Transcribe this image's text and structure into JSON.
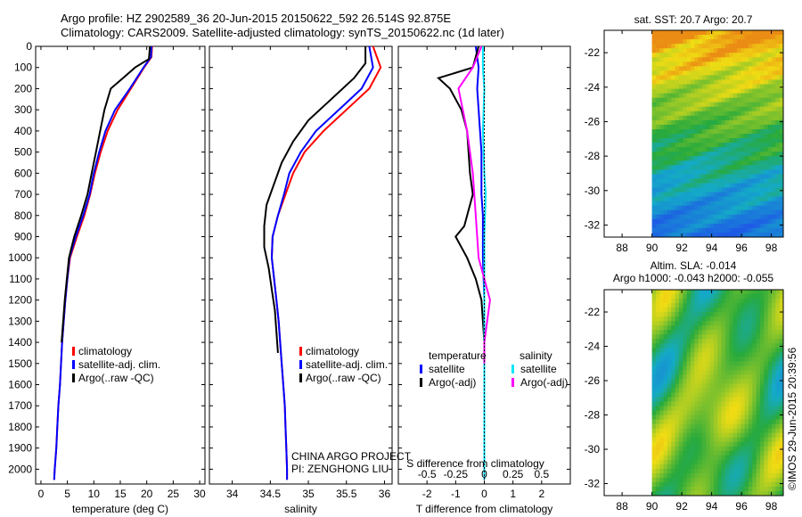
{
  "header": {
    "line1": "Argo profile: HZ 2902589_36 20-Jun-2015 20150622_592 26.514S 92.875E",
    "line2": "Climatology: CARS2009. Satellite-adjusted climatology: synTS_20150622.nc (1d later)"
  },
  "chart_data": [
    {
      "type": "line",
      "name": "temperature-panel",
      "xlabel": "temperature (deg C)",
      "ylabel": "",
      "xlim": [
        -1,
        31
      ],
      "ylim": [
        2070,
        0
      ],
      "xticks": [
        0,
        5,
        10,
        15,
        20,
        25,
        30
      ],
      "yticks": [
        0,
        100,
        200,
        300,
        400,
        500,
        600,
        700,
        800,
        900,
        1000,
        1100,
        1200,
        1300,
        1400,
        1500,
        1600,
        1700,
        1800,
        1900,
        2000
      ],
      "legend": [
        "climatology",
        "satellite-adj. clim.",
        "Argo(..raw -QC)"
      ],
      "legend_colors": [
        "#ff0000",
        "#0000ff",
        "#000000"
      ],
      "series": [
        {
          "name": "climatology",
          "color": "#ff0000",
          "points": [
            [
              21.0,
              0
            ],
            [
              20.9,
              50
            ],
            [
              19.5,
              100
            ],
            [
              17.0,
              200
            ],
            [
              14.5,
              300
            ],
            [
              12.6,
              400
            ],
            [
              11.3,
              500
            ],
            [
              10.2,
              600
            ],
            [
              9.3,
              700
            ],
            [
              8.2,
              800
            ],
            [
              6.8,
              900
            ],
            [
              5.5,
              1000
            ],
            [
              5.0,
              1100
            ],
            [
              4.6,
              1200
            ],
            [
              4.3,
              1300
            ],
            [
              4.0,
              1400
            ],
            [
              3.8,
              1500
            ],
            [
              3.6,
              1600
            ],
            [
              3.3,
              1700
            ],
            [
              3.1,
              1800
            ],
            [
              2.9,
              1900
            ],
            [
              2.6,
              2000
            ],
            [
              2.5,
              2050
            ]
          ]
        },
        {
          "name": "satellite-adj. clim.",
          "color": "#0000ff",
          "points": [
            [
              20.9,
              0
            ],
            [
              20.8,
              50
            ],
            [
              19.4,
              100
            ],
            [
              16.8,
              200
            ],
            [
              14.0,
              300
            ],
            [
              12.2,
              400
            ],
            [
              11.0,
              500
            ],
            [
              10.0,
              600
            ],
            [
              9.2,
              700
            ],
            [
              8.0,
              800
            ],
            [
              6.6,
              900
            ],
            [
              5.4,
              1000
            ],
            [
              5.0,
              1100
            ],
            [
              4.6,
              1200
            ],
            [
              4.3,
              1300
            ],
            [
              4.0,
              1400
            ],
            [
              3.8,
              1500
            ],
            [
              3.6,
              1600
            ],
            [
              3.3,
              1700
            ],
            [
              3.1,
              1800
            ],
            [
              2.9,
              1900
            ],
            [
              2.6,
              2000
            ],
            [
              2.5,
              2050
            ]
          ]
        },
        {
          "name": "Argo(..raw -QC)",
          "color": "#000000",
          "points": [
            [
              20.6,
              0
            ],
            [
              20.4,
              60
            ],
            [
              17.8,
              100
            ],
            [
              15.5,
              150
            ],
            [
              13.2,
              200
            ],
            [
              12.0,
              300
            ],
            [
              11.2,
              400
            ],
            [
              10.4,
              500
            ],
            [
              9.6,
              600
            ],
            [
              8.8,
              700
            ],
            [
              7.6,
              800
            ],
            [
              6.3,
              900
            ],
            [
              5.3,
              1000
            ],
            [
              4.9,
              1100
            ],
            [
              4.5,
              1200
            ],
            [
              4.2,
              1300
            ],
            [
              3.9,
              1400
            ]
          ]
        }
      ]
    },
    {
      "type": "line",
      "name": "salinity-panel",
      "xlabel": "salinity",
      "ylabel": "",
      "xlim": [
        33.7,
        36.1
      ],
      "ylim": [
        2070,
        0
      ],
      "xticks": [
        34,
        34.5,
        35,
        35.5,
        36
      ],
      "legend": [
        "climatology",
        "satellite-adj. clim.",
        "Argo(..raw -QC)"
      ],
      "legend_colors": [
        "#ff0000",
        "#0000ff",
        "#000000"
      ],
      "annotation": [
        "CHINA ARGO PROJECT",
        "PI: ZENGHONG LIU"
      ],
      "series": [
        {
          "name": "climatology",
          "color": "#ff0000",
          "points": [
            [
              35.85,
              0
            ],
            [
              35.95,
              100
            ],
            [
              35.8,
              200
            ],
            [
              35.5,
              300
            ],
            [
              35.2,
              400
            ],
            [
              34.95,
              500
            ],
            [
              34.8,
              600
            ],
            [
              34.7,
              700
            ],
            [
              34.6,
              800
            ],
            [
              34.53,
              900
            ],
            [
              34.52,
              1000
            ],
            [
              34.55,
              1100
            ],
            [
              34.58,
              1200
            ],
            [
              34.61,
              1300
            ],
            [
              34.63,
              1400
            ],
            [
              34.65,
              1500
            ],
            [
              34.67,
              1600
            ],
            [
              34.69,
              1700
            ],
            [
              34.7,
              1800
            ],
            [
              34.71,
              1900
            ],
            [
              34.72,
              2000
            ],
            [
              34.72,
              2050
            ]
          ]
        },
        {
          "name": "satellite-adj. clim.",
          "color": "#0000ff",
          "points": [
            [
              35.8,
              0
            ],
            [
              35.85,
              100
            ],
            [
              35.7,
              200
            ],
            [
              35.4,
              300
            ],
            [
              35.1,
              400
            ],
            [
              34.9,
              500
            ],
            [
              34.75,
              600
            ],
            [
              34.68,
              700
            ],
            [
              34.6,
              800
            ],
            [
              34.53,
              900
            ],
            [
              34.52,
              1000
            ],
            [
              34.55,
              1100
            ],
            [
              34.58,
              1200
            ],
            [
              34.61,
              1300
            ],
            [
              34.63,
              1400
            ],
            [
              34.65,
              1500
            ],
            [
              34.67,
              1600
            ],
            [
              34.69,
              1700
            ],
            [
              34.7,
              1800
            ],
            [
              34.71,
              1900
            ],
            [
              34.72,
              2000
            ],
            [
              34.72,
              2050
            ]
          ]
        },
        {
          "name": "Argo(..raw -QC)",
          "color": "#000000",
          "points": [
            [
              35.75,
              0
            ],
            [
              35.75,
              80
            ],
            [
              35.6,
              150
            ],
            [
              35.3,
              250
            ],
            [
              35.0,
              350
            ],
            [
              34.8,
              450
            ],
            [
              34.65,
              550
            ],
            [
              34.55,
              650
            ],
            [
              34.45,
              750
            ],
            [
              34.42,
              850
            ],
            [
              34.42,
              950
            ],
            [
              34.48,
              1050
            ],
            [
              34.52,
              1150
            ],
            [
              34.56,
              1250
            ],
            [
              34.58,
              1350
            ],
            [
              34.6,
              1450
            ]
          ]
        }
      ]
    },
    {
      "type": "line",
      "name": "difference-panel",
      "xlabel": "T difference from climatology",
      "top_xlabel": "S difference from climatology",
      "xlim": [
        -3,
        3
      ],
      "ylim": [
        2070,
        0
      ],
      "xticks": [
        -2,
        -1,
        0,
        1,
        2
      ],
      "top_xticks": [
        "-0.5",
        "-0.25",
        "0",
        "0.25",
        "0.5"
      ],
      "legend_t": {
        "title": "temperature",
        "items": [
          "satellite",
          "Argo(-adj)"
        ],
        "colors": [
          "#0000ff",
          "#000000"
        ]
      },
      "legend_s": {
        "title": "salinity",
        "items": [
          "satellite",
          "Argo(-adj)"
        ],
        "colors": [
          "#00e5ff",
          "#ff00ff"
        ]
      },
      "series": [
        {
          "name": "T satellite",
          "color": "#0000ff",
          "points": [
            [
              -0.3,
              0
            ],
            [
              -0.2,
              100
            ],
            [
              -0.25,
              200
            ],
            [
              -0.2,
              300
            ],
            [
              -0.15,
              400
            ],
            [
              -0.1,
              500
            ],
            [
              -0.1,
              600
            ],
            [
              -0.1,
              700
            ],
            [
              -0.05,
              800
            ],
            [
              -0.05,
              1000
            ],
            [
              0,
              1200
            ],
            [
              0,
              1400
            ],
            [
              0,
              2050
            ]
          ]
        },
        {
          "name": "T Argo(-adj)",
          "color": "#000000",
          "points": [
            [
              -0.2,
              0
            ],
            [
              -0.4,
              100
            ],
            [
              -1.6,
              150
            ],
            [
              -1.2,
              200
            ],
            [
              -0.8,
              300
            ],
            [
              -0.6,
              400
            ],
            [
              -0.5,
              600
            ],
            [
              -0.4,
              700
            ],
            [
              -0.7,
              850
            ],
            [
              -1.0,
              900
            ],
            [
              -0.6,
              1000
            ],
            [
              -0.3,
              1100
            ],
            [
              -0.1,
              1200
            ],
            [
              -0.05,
              1300
            ],
            [
              0,
              1400
            ]
          ]
        },
        {
          "name": "S satellite",
          "color": "#00e5ff",
          "points": [
            [
              -0.05,
              0
            ],
            [
              -0.05,
              100
            ],
            [
              0,
              200
            ],
            [
              -0.05,
              400
            ],
            [
              0,
              600
            ],
            [
              0.05,
              700
            ],
            [
              0,
              900
            ],
            [
              0,
              1200
            ],
            [
              0,
              2050
            ]
          ]
        },
        {
          "name": "S Argo(-adj)",
          "color": "#ff00ff",
          "points": [
            [
              -0.1,
              0
            ],
            [
              -0.4,
              100
            ],
            [
              -0.9,
              200
            ],
            [
              -0.6,
              400
            ],
            [
              -0.4,
              600
            ],
            [
              -0.3,
              800
            ],
            [
              -0.2,
              1000
            ],
            [
              0.1,
              1150
            ],
            [
              0.2,
              1200
            ],
            [
              0.1,
              1300
            ],
            [
              0,
              1400
            ],
            [
              0,
              1500
            ]
          ]
        }
      ]
    },
    {
      "type": "heatmap",
      "name": "sst-map",
      "title": "sat. SST: 20.7  Argo: 20.7",
      "xticks": [
        88,
        90,
        92,
        94,
        96,
        98
      ],
      "yticks": [
        -22,
        -24,
        -26,
        -28,
        -30,
        -32
      ],
      "xlim": [
        86.8,
        98.8
      ],
      "ylim": [
        -32.7,
        -20.7
      ],
      "data_xlim": [
        90,
        98.8
      ]
    },
    {
      "type": "heatmap",
      "name": "sla-map",
      "title": "Altim. SLA: -0.014",
      "subtitle": "Argo h1000: -0.043 h2000: -0.055",
      "xticks": [
        88,
        90,
        92,
        94,
        96,
        98
      ],
      "yticks": [
        -22,
        -24,
        -26,
        -28,
        -30,
        -32
      ],
      "xlim": [
        86.8,
        98.8
      ],
      "ylim": [
        -32.7,
        -20.7
      ],
      "data_xlim": [
        90,
        98.8
      ]
    }
  ],
  "credit": "©IMOS 29-Jun-2015 20:39:56"
}
